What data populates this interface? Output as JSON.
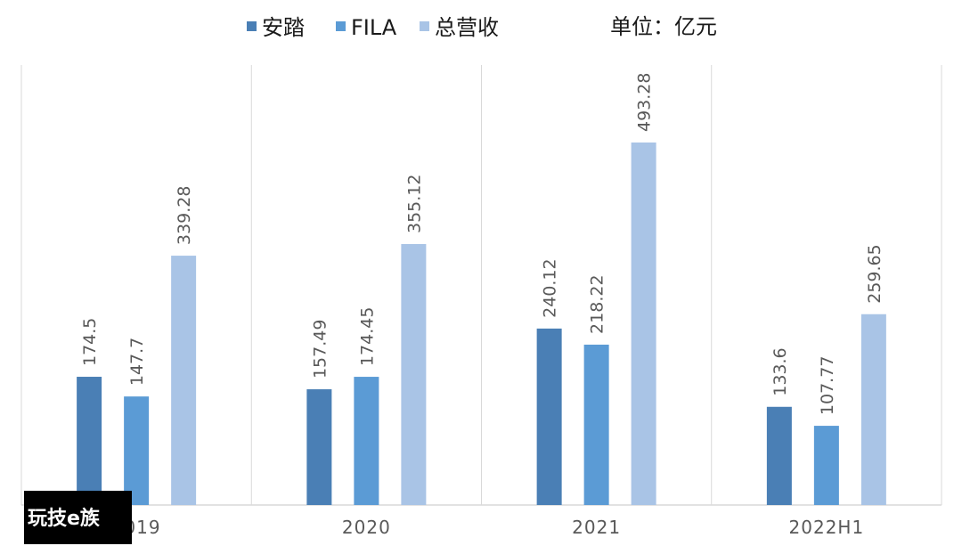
{
  "chart_data": {
    "type": "bar",
    "unit_label": "单位：亿元",
    "categories": [
      "2019",
      "2020",
      "2021",
      "2022H1"
    ],
    "series": [
      {
        "name": "安踏",
        "color": "#4a7fb5",
        "values": [
          174.5,
          157.49,
          240.12,
          133.6
        ],
        "labels": [
          "174.5",
          "157.49",
          "240.12",
          "133.6"
        ]
      },
      {
        "name": "FILA",
        "color": "#5b9bd5",
        "values": [
          147.7,
          174.45,
          218.22,
          107.77
        ],
        "labels": [
          "147.7",
          "174.45",
          "218.22",
          "107.77"
        ]
      },
      {
        "name": "总营收",
        "color": "#a9c4e6",
        "values": [
          339.28,
          355.12,
          493.28,
          259.65
        ],
        "labels": [
          "339.28",
          "355.12",
          "493.28",
          "259.65"
        ]
      }
    ],
    "ylim": [
      0,
      600
    ],
    "grid": false,
    "legend_position": "top-center"
  },
  "watermark": {
    "text": "玩技e族",
    "color": "#000000"
  }
}
